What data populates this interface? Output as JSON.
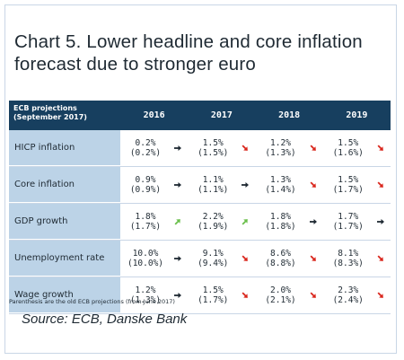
{
  "chart_data": {
    "type": "table",
    "title": "Chart 5. Lower headline and core inflation forecast due to stronger euro",
    "header_label": "ECB projections (September 2017)",
    "columns": [
      "2016",
      "2017",
      "2018",
      "2019"
    ],
    "rows": [
      {
        "label": "HICP inflation",
        "cells": [
          {
            "new": "0.2%",
            "old": "(0.2%)",
            "arrow": "right"
          },
          {
            "new": "1.5%",
            "old": "(1.5%)",
            "arrow": "down"
          },
          {
            "new": "1.2%",
            "old": "(1.3%)",
            "arrow": "down"
          },
          {
            "new": "1.5%",
            "old": "(1.6%)",
            "arrow": "down"
          }
        ]
      },
      {
        "label": "Core inflation",
        "cells": [
          {
            "new": "0.9%",
            "old": "(0.9%)",
            "arrow": "right"
          },
          {
            "new": "1.1%",
            "old": "(1.1%)",
            "arrow": "right"
          },
          {
            "new": "1.3%",
            "old": "(1.4%)",
            "arrow": "down"
          },
          {
            "new": "1.5%",
            "old": "(1.7%)",
            "arrow": "down"
          }
        ]
      },
      {
        "label": "GDP growth",
        "cells": [
          {
            "new": "1.8%",
            "old": "(1.7%)",
            "arrow": "up"
          },
          {
            "new": "2.2%",
            "old": "(1.9%)",
            "arrow": "up"
          },
          {
            "new": "1.8%",
            "old": "(1.8%)",
            "arrow": "right"
          },
          {
            "new": "1.7%",
            "old": "(1.7%)",
            "arrow": "right"
          }
        ]
      },
      {
        "label": "Unemployment rate",
        "cells": [
          {
            "new": "10.0%",
            "old": "(10.0%)",
            "arrow": "right"
          },
          {
            "new": "9.1%",
            "old": "(9.4%)",
            "arrow": "down"
          },
          {
            "new": "8.6%",
            "old": "(8.8%)",
            "arrow": "down"
          },
          {
            "new": "8.1%",
            "old": "(8.3%)",
            "arrow": "down"
          }
        ]
      },
      {
        "label": "Wage growth",
        "cells": [
          {
            "new": "1.2%",
            "old": "(1.3%)",
            "arrow": "right"
          },
          {
            "new": "1.5%",
            "old": "(1.7%)",
            "arrow": "down"
          },
          {
            "new": "2.0%",
            "old": "(2.1%)",
            "arrow": "down"
          },
          {
            "new": "2.3%",
            "old": "(2.4%)",
            "arrow": "down"
          }
        ]
      }
    ],
    "note": "Parenthesis are the old ECB projections (from June 2017)",
    "source": "Source: ECB, Danske Bank"
  },
  "colors": {
    "header_bg": "#173f5f",
    "label_bg": "#bcd3e7",
    "arrow_up": "#6abf4b",
    "arrow_down": "#d9261c",
    "arrow_right": "#1f2a33"
  }
}
